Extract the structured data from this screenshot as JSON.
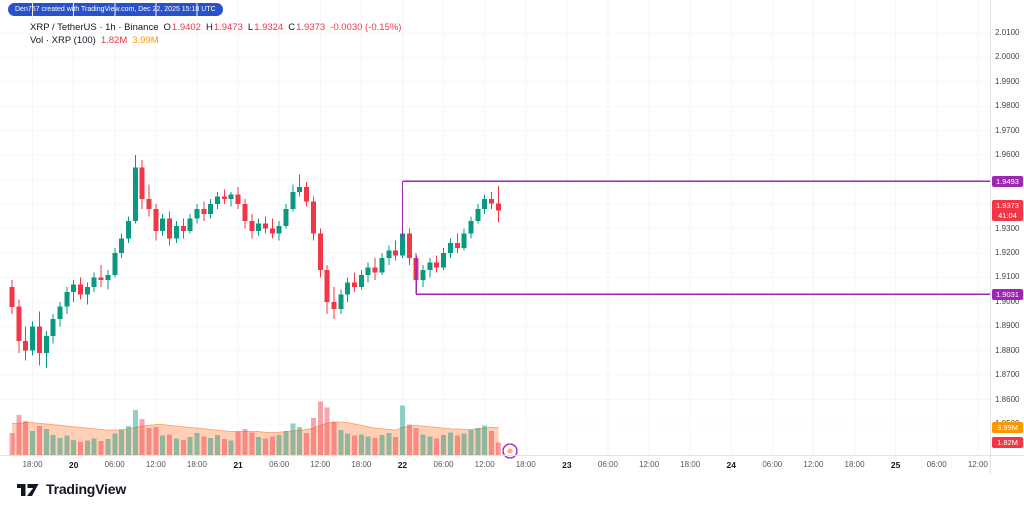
{
  "attribution": {
    "text": "Den767 created with TradingView.com, Dec 22, 2025 15:18 UTC"
  },
  "legend": {
    "series_title": "XRP / TetherUS · 1h · Binance",
    "ohlc": [
      {
        "k": "O",
        "v": "1.9402"
      },
      {
        "k": "H",
        "v": "1.9473"
      },
      {
        "k": "L",
        "v": "1.9324"
      },
      {
        "k": "C",
        "v": "1.9373"
      }
    ],
    "change": "-0.0030 (-0.15%)",
    "volume_title": "Vol · XRP (100)",
    "volume_value": "1.82M",
    "volume_ma": "3.99M"
  },
  "logo": {
    "text": "TradingView"
  },
  "colors": {
    "up": "#089981",
    "down": "#f23645",
    "vol_up": "rgba(8,153,129,0.45)",
    "vol_down": "rgba(242,54,69,0.45)",
    "ma_area": "rgba(255,160,110,0.5)",
    "ma_line": "rgba(255,130,60,0.6)",
    "drawing": "#9c27b0",
    "grid_v": "#f2f4f7",
    "grid_h": "#f5f7fa"
  },
  "chart_data": {
    "type": "candlestick",
    "symbol": "XRP / TetherUS",
    "interval": "1h",
    "exchange": "Binance",
    "ylim": [
      1.85,
      2.01
    ],
    "vol_axis_max": 9,
    "price_ticks": [
      "2.0100",
      "2.0000",
      "1.9900",
      "1.9800",
      "1.9700",
      "1.9600",
      "1.9300",
      "1.9200",
      "1.9100",
      "1.9000",
      "1.8900",
      "1.8800",
      "1.8700",
      "1.8600",
      "1.8500"
    ],
    "time_ticks": [
      {
        "label": "18:00",
        "offset": 3,
        "major": false
      },
      {
        "label": "20",
        "offset": 9,
        "major": true
      },
      {
        "label": "06:00",
        "offset": 15,
        "major": false
      },
      {
        "label": "12:00",
        "offset": 21,
        "major": false
      },
      {
        "label": "18:00",
        "offset": 27,
        "major": false
      },
      {
        "label": "21",
        "offset": 33,
        "major": true
      },
      {
        "label": "06:00",
        "offset": 39,
        "major": false
      },
      {
        "label": "12:00",
        "offset": 45,
        "major": false
      },
      {
        "label": "18:00",
        "offset": 51,
        "major": false
      },
      {
        "label": "22",
        "offset": 57,
        "major": true
      },
      {
        "label": "06:00",
        "offset": 63,
        "major": false
      },
      {
        "label": "12:00",
        "offset": 69,
        "major": false
      },
      {
        "label": "18:00",
        "offset": 75,
        "major": false
      },
      {
        "label": "23",
        "offset": 81,
        "major": true
      },
      {
        "label": "06:00",
        "offset": 87,
        "major": false
      },
      {
        "label": "12:00",
        "offset": 93,
        "major": false
      },
      {
        "label": "18:00",
        "offset": 99,
        "major": false
      },
      {
        "label": "24",
        "offset": 105,
        "major": true
      },
      {
        "label": "06:00",
        "offset": 111,
        "major": false
      },
      {
        "label": "12:00",
        "offset": 117,
        "major": false
      },
      {
        "label": "18:00",
        "offset": 123,
        "major": false
      },
      {
        "label": "25",
        "offset": 129,
        "major": true
      },
      {
        "label": "06:00",
        "offset": 135,
        "major": false
      },
      {
        "label": "12:00",
        "offset": 141,
        "major": false
      }
    ],
    "candles": [
      [
        1.906,
        1.909,
        1.895,
        1.898
      ],
      [
        1.898,
        1.901,
        1.879,
        1.884
      ],
      [
        1.884,
        1.89,
        1.876,
        1.88
      ],
      [
        1.88,
        1.892,
        1.878,
        1.89
      ],
      [
        1.89,
        1.896,
        1.874,
        1.879
      ],
      [
        1.879,
        1.888,
        1.873,
        1.886
      ],
      [
        1.886,
        1.895,
        1.883,
        1.893
      ],
      [
        1.893,
        1.9,
        1.89,
        1.898
      ],
      [
        1.898,
        1.906,
        1.895,
        1.904
      ],
      [
        1.904,
        1.909,
        1.9,
        1.907
      ],
      [
        1.907,
        1.91,
        1.901,
        1.903
      ],
      [
        1.903,
        1.908,
        1.899,
        1.906
      ],
      [
        1.906,
        1.912,
        1.904,
        1.91
      ],
      [
        1.91,
        1.915,
        1.906,
        1.909
      ],
      [
        1.909,
        1.913,
        1.905,
        1.911
      ],
      [
        1.911,
        1.922,
        1.91,
        1.92
      ],
      [
        1.92,
        1.928,
        1.918,
        1.926
      ],
      [
        1.926,
        1.935,
        1.924,
        1.933
      ],
      [
        1.933,
        1.96,
        1.932,
        1.955
      ],
      [
        1.955,
        1.958,
        1.938,
        1.942
      ],
      [
        1.942,
        1.948,
        1.935,
        1.938
      ],
      [
        1.938,
        1.94,
        1.925,
        1.929
      ],
      [
        1.929,
        1.936,
        1.927,
        1.934
      ],
      [
        1.934,
        1.937,
        1.923,
        1.926
      ],
      [
        1.926,
        1.933,
        1.924,
        1.931
      ],
      [
        1.931,
        1.934,
        1.926,
        1.929
      ],
      [
        1.929,
        1.936,
        1.928,
        1.934
      ],
      [
        1.934,
        1.94,
        1.932,
        1.938
      ],
      [
        1.938,
        1.941,
        1.933,
        1.936
      ],
      [
        1.936,
        1.942,
        1.934,
        1.94
      ],
      [
        1.94,
        1.945,
        1.938,
        1.943
      ],
      [
        1.943,
        1.946,
        1.94,
        1.942
      ],
      [
        1.942,
        1.945,
        1.939,
        1.944
      ],
      [
        1.944,
        1.947,
        1.938,
        1.94
      ],
      [
        1.94,
        1.942,
        1.93,
        1.933
      ],
      [
        1.933,
        1.936,
        1.926,
        1.929
      ],
      [
        1.929,
        1.934,
        1.927,
        1.932
      ],
      [
        1.932,
        1.935,
        1.928,
        1.93
      ],
      [
        1.93,
        1.934,
        1.926,
        1.928
      ],
      [
        1.928,
        1.933,
        1.925,
        1.931
      ],
      [
        1.931,
        1.94,
        1.93,
        1.938
      ],
      [
        1.938,
        1.948,
        1.937,
        1.945
      ],
      [
        1.945,
        1.952,
        1.943,
        1.947
      ],
      [
        1.947,
        1.949,
        1.939,
        1.941
      ],
      [
        1.941,
        1.943,
        1.925,
        1.928
      ],
      [
        1.928,
        1.93,
        1.91,
        1.913
      ],
      [
        1.913,
        1.915,
        1.895,
        1.9
      ],
      [
        1.9,
        1.906,
        1.893,
        1.897
      ],
      [
        1.897,
        1.905,
        1.895,
        1.903
      ],
      [
        1.903,
        1.91,
        1.9,
        1.908
      ],
      [
        1.908,
        1.912,
        1.904,
        1.906
      ],
      [
        1.906,
        1.913,
        1.905,
        1.911
      ],
      [
        1.911,
        1.916,
        1.908,
        1.914
      ],
      [
        1.914,
        1.918,
        1.909,
        1.912
      ],
      [
        1.912,
        1.92,
        1.911,
        1.918
      ],
      [
        1.918,
        1.923,
        1.915,
        1.921
      ],
      [
        1.921,
        1.925,
        1.917,
        1.919
      ],
      [
        1.919,
        1.948,
        1.918,
        1.928
      ],
      [
        1.928,
        1.93,
        1.915,
        1.918
      ],
      [
        1.918,
        1.92,
        1.9031,
        1.909
      ],
      [
        1.909,
        1.915,
        1.906,
        1.913
      ],
      [
        1.913,
        1.918,
        1.91,
        1.916
      ],
      [
        1.916,
        1.919,
        1.912,
        1.914
      ],
      [
        1.914,
        1.922,
        1.913,
        1.92
      ],
      [
        1.92,
        1.926,
        1.918,
        1.924
      ],
      [
        1.924,
        1.928,
        1.92,
        1.922
      ],
      [
        1.922,
        1.93,
        1.921,
        1.928
      ],
      [
        1.928,
        1.935,
        1.926,
        1.933
      ],
      [
        1.933,
        1.94,
        1.932,
        1.938
      ],
      [
        1.938,
        1.944,
        1.936,
        1.942
      ],
      [
        1.942,
        1.945,
        1.938,
        1.9402
      ],
      [
        1.9402,
        1.9473,
        1.9324,
        1.9373
      ]
    ],
    "volumes": [
      3.2,
      5.8,
      4.9,
      3.5,
      4.2,
      3.8,
      2.9,
      2.5,
      2.8,
      2.2,
      1.9,
      2.1,
      2.4,
      2.0,
      2.3,
      3.1,
      3.6,
      4.2,
      6.5,
      5.2,
      3.9,
      4.1,
      2.8,
      3.0,
      2.4,
      2.2,
      2.6,
      3.2,
      2.7,
      2.5,
      2.9,
      2.3,
      2.1,
      3.4,
      3.8,
      3.3,
      2.6,
      2.4,
      2.7,
      2.9,
      3.5,
      4.6,
      4.1,
      3.2,
      5.4,
      7.8,
      6.9,
      4.8,
      3.6,
      3.1,
      2.8,
      3.0,
      2.7,
      2.5,
      2.9,
      3.2,
      2.6,
      7.2,
      4.4,
      3.9,
      3.0,
      2.7,
      2.4,
      2.9,
      3.3,
      2.8,
      3.1,
      3.6,
      3.9,
      4.3,
      3.5,
      1.82
    ],
    "vol_ma": [
      4.6,
      4.6,
      4.7,
      4.7,
      4.6,
      4.5,
      4.4,
      4.3,
      4.2,
      4.1,
      4.0,
      3.9,
      3.8,
      3.7,
      3.6,
      3.6,
      3.7,
      3.8,
      4.0,
      4.2,
      4.3,
      4.4,
      4.4,
      4.3,
      4.2,
      4.1,
      4.0,
      3.9,
      3.8,
      3.7,
      3.6,
      3.5,
      3.4,
      3.4,
      3.4,
      3.4,
      3.4,
      3.3,
      3.3,
      3.3,
      3.4,
      3.5,
      3.6,
      3.7,
      3.9,
      4.3,
      4.6,
      4.8,
      4.8,
      4.7,
      4.5,
      4.3,
      4.1,
      3.9,
      3.8,
      3.7,
      3.6,
      4.0,
      4.2,
      4.3,
      4.2,
      4.1,
      4.0,
      3.9,
      3.8,
      3.8,
      3.7,
      3.7,
      3.8,
      3.9,
      4.0,
      3.99
    ]
  },
  "price_axis": {
    "line_badges": [
      {
        "text": "1.9493",
        "price": 1.9493
      },
      {
        "text": "1.9031",
        "price": 1.9031
      }
    ],
    "last_price_badge": {
      "price_text": "1.9373",
      "price": 1.9373,
      "countdown": "41:04"
    },
    "vol_badges": [
      {
        "text": "3.99M",
        "value": 3.99,
        "kind": "ma"
      },
      {
        "text": "1.82M",
        "value": 1.82,
        "kind": "current"
      }
    ]
  },
  "drawings": [
    {
      "type": "horizontal-ray",
      "price": 1.9493,
      "anchor_offset": 57,
      "tail_price": 1.9265
    },
    {
      "type": "horizontal-ray",
      "price": 1.9031,
      "anchor_offset": 59,
      "tail_price": 1.919
    }
  ],
  "marker": {
    "shape": "circle"
  }
}
